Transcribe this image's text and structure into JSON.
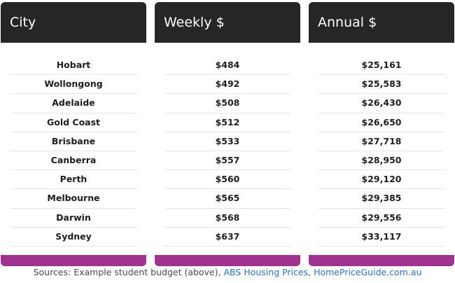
{
  "columns": [
    {
      "header": "City",
      "rows": [
        "Hobart",
        "Wollongong",
        "Adelaide",
        "Gold Coast",
        "Brisbane",
        "Canberra",
        "Perth",
        "Melbourne",
        "Darwin",
        "Sydney"
      ]
    },
    {
      "header": "Weekly $",
      "rows": [
        "$484",
        "$492",
        "$508",
        "$512",
        "$533",
        "$557",
        "$560",
        "$565",
        "$568",
        "$637"
      ]
    },
    {
      "header": "Annual $",
      "rows": [
        "$25,161",
        "$25,583",
        "$26,430",
        "$26,650",
        "$27,718",
        "$28,950",
        "$29,120",
        "$29,385",
        "$29,556",
        "$33,117"
      ]
    }
  ],
  "sources": {
    "prefix": "Sources: Example student budget (above),",
    "links": [
      "ABS Housing Prices",
      "HomePriceGuide.com.au"
    ],
    "separator": ","
  },
  "colors": {
    "header_bg": "#262626",
    "footer_accent": "#a0338f",
    "link": "#2f6eb5"
  }
}
